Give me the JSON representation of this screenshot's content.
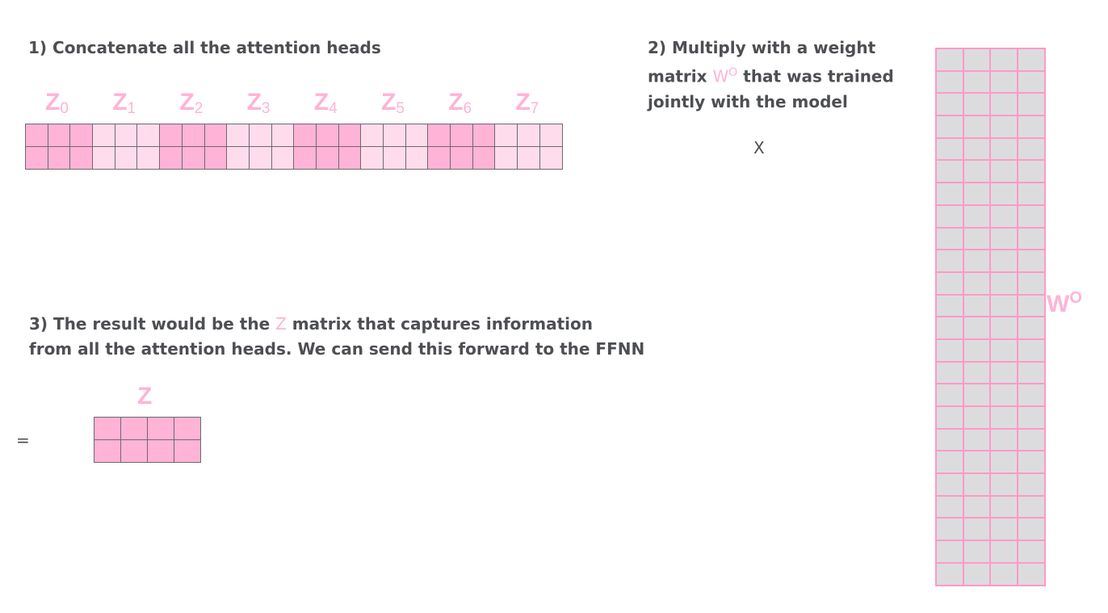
{
  "step1": "1) Concatenate all the attention heads",
  "step2": {
    "line1": "2) Multiply with a weight",
    "line2_pre": "matrix ",
    "wo": "W",
    "wo_sup": "O",
    "line2_post": " that was trained",
    "line3": "jointly with the model"
  },
  "step3": {
    "pre": "3) The result would be the ",
    "z": "Z",
    "post": " matrix that captures information",
    "line2": "from all the attention heads. We can send this forward to the FFNN"
  },
  "times": "X",
  "equals": "=",
  "heads": [
    {
      "z": "Z",
      "sub": "0"
    },
    {
      "z": "Z",
      "sub": "1"
    },
    {
      "z": "Z",
      "sub": "2"
    },
    {
      "z": "Z",
      "sub": "3"
    },
    {
      "z": "Z",
      "sub": "4"
    },
    {
      "z": "Z",
      "sub": "5"
    },
    {
      "z": "Z",
      "sub": "6"
    },
    {
      "z": "Z",
      "sub": "7"
    }
  ],
  "z_label": "Z",
  "wo_label": {
    "w": "W",
    "sup": "O"
  },
  "colors": {
    "head_dark": "#ffb3d7",
    "head_light": "#ffdcec",
    "weight_fill": "#dcdcde",
    "weight_border": "#ff99c8",
    "text": "#4d4f53"
  }
}
